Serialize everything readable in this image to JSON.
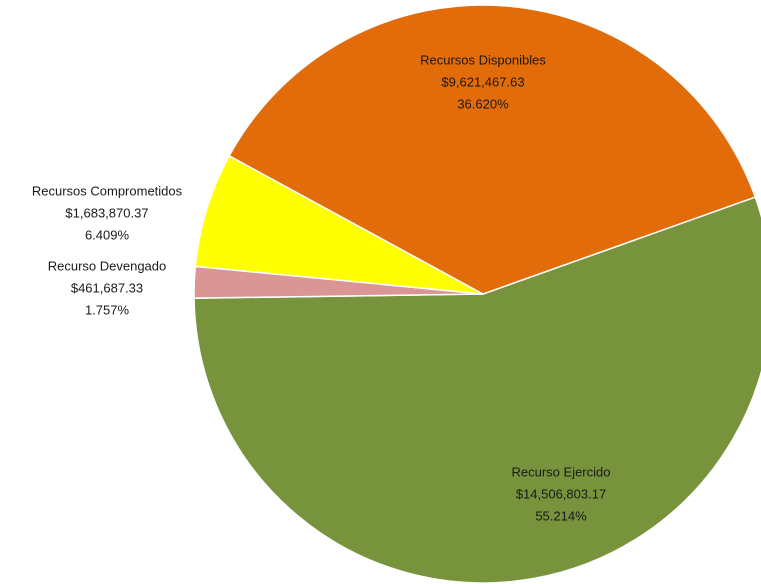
{
  "chart_data": {
    "type": "pie",
    "categories": [
      "Recurso Ejercido",
      "Recurso Devengado",
      "Recursos Comprometidos",
      "Recursos Disponibles"
    ],
    "values": [
      14506803.17,
      461687.33,
      1683870.37,
      9621467.63
    ],
    "value_labels": [
      "$14,506,803.17",
      "$461,687.33",
      "$1,683,870.37",
      "$9,621,467.63"
    ],
    "percents": [
      55.214,
      1.757,
      6.409,
      36.62
    ],
    "percent_labels": [
      "55.214%",
      "1.757%",
      "6.409%",
      "36.620%"
    ],
    "colors": [
      "#77933c",
      "#d99694",
      "#ffff00",
      "#e36c0a"
    ]
  }
}
